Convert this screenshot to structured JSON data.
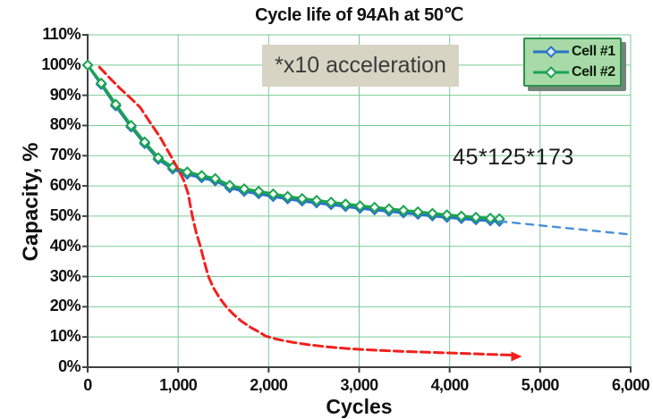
{
  "chart_data": {
    "type": "line",
    "title": "Cycle life of 94Ah at  50℃",
    "xlabel": "Cycles",
    "ylabel": "Capacity, %",
    "xlim": [
      0,
      6000
    ],
    "ylim": [
      0,
      110
    ],
    "grid": true,
    "legend_position": "top-right",
    "x_ticks": [
      {
        "value": 0,
        "label": "0"
      },
      {
        "value": 1000,
        "label": "1,000"
      },
      {
        "value": 2000,
        "label": "2,000"
      },
      {
        "value": 3000,
        "label": "3,000"
      },
      {
        "value": 4000,
        "label": "4,000"
      },
      {
        "value": 5000,
        "label": "5,000"
      },
      {
        "value": 6000,
        "label": "6,000"
      }
    ],
    "y_ticks": [
      {
        "value": 0,
        "label": "0%"
      },
      {
        "value": 10,
        "label": "10%"
      },
      {
        "value": 20,
        "label": "20%"
      },
      {
        "value": 30,
        "label": "30%"
      },
      {
        "value": 40,
        "label": "40%"
      },
      {
        "value": 50,
        "label": "50%"
      },
      {
        "value": 60,
        "label": "60%"
      },
      {
        "value": 70,
        "label": "70%"
      },
      {
        "value": 80,
        "label": "80%"
      },
      {
        "value": 90,
        "label": "90%"
      },
      {
        "value": 100,
        "label": "100%"
      },
      {
        "value": 110,
        "label": "110%"
      }
    ],
    "series": [
      {
        "name": "Cell #1",
        "color": "#2b74c8",
        "line": "solid",
        "marker": "diamond",
        "points": [
          [
            0,
            100
          ],
          [
            150,
            93.6
          ],
          [
            310,
            86.5
          ],
          [
            480,
            79.5
          ],
          [
            630,
            74
          ],
          [
            780,
            68.8
          ],
          [
            940,
            65.6
          ],
          [
            1100,
            63.9
          ],
          [
            1260,
            62.7
          ],
          [
            1410,
            61.7
          ],
          [
            1570,
            59.4
          ],
          [
            1730,
            58.2
          ],
          [
            1890,
            57.4
          ],
          [
            2050,
            56.5
          ],
          [
            2210,
            55.7
          ],
          [
            2370,
            55
          ],
          [
            2530,
            54.4
          ],
          [
            2690,
            53.8
          ],
          [
            2850,
            53.2
          ],
          [
            3010,
            52.6
          ],
          [
            3170,
            52.1
          ],
          [
            3330,
            51.6
          ],
          [
            3490,
            51.1
          ],
          [
            3650,
            50.6
          ],
          [
            3810,
            50.1
          ],
          [
            3970,
            49.6
          ],
          [
            4130,
            49.2
          ],
          [
            4290,
            48.8
          ],
          [
            4450,
            48.5
          ],
          [
            4550,
            48.3
          ]
        ]
      },
      {
        "name": "Cell #2",
        "color": "#1ba351",
        "line": "solid",
        "marker": "diamond",
        "points": [
          [
            0,
            100
          ],
          [
            150,
            94
          ],
          [
            310,
            87
          ],
          [
            480,
            80
          ],
          [
            630,
            74.5
          ],
          [
            780,
            69.3
          ],
          [
            940,
            66.2
          ],
          [
            1100,
            64.6
          ],
          [
            1260,
            63.4
          ],
          [
            1410,
            62.4
          ],
          [
            1570,
            60.2
          ],
          [
            1730,
            59
          ],
          [
            1890,
            58.2
          ],
          [
            2050,
            57.3
          ],
          [
            2210,
            56.5
          ],
          [
            2370,
            55.8
          ],
          [
            2530,
            55.2
          ],
          [
            2690,
            54.6
          ],
          [
            2850,
            54
          ],
          [
            3010,
            53.4
          ],
          [
            3170,
            52.9
          ],
          [
            3330,
            52.4
          ],
          [
            3490,
            51.9
          ],
          [
            3650,
            51.4
          ],
          [
            3810,
            50.9
          ],
          [
            3970,
            50.4
          ],
          [
            4130,
            50
          ],
          [
            4290,
            49.6
          ],
          [
            4450,
            49.3
          ],
          [
            4550,
            49.1
          ]
        ]
      },
      {
        "name": "Cell #1 extrapolation",
        "color": "#4a90d9",
        "line": "dashed",
        "marker": "none",
        "points": [
          [
            4550,
            48.3
          ],
          [
            6000,
            43.9
          ]
        ]
      },
      {
        "name": "x10 accelerated reference",
        "color": "#f2201e",
        "line": "dashed",
        "marker": "none",
        "arrow_end": true,
        "points": [
          [
            130,
            99.3
          ],
          [
            250,
            95.5
          ],
          [
            360,
            92.2
          ],
          [
            470,
            89.2
          ],
          [
            580,
            86
          ],
          [
            690,
            81
          ],
          [
            800,
            76.2
          ],
          [
            917,
            70
          ],
          [
            1000,
            65.5
          ],
          [
            1060,
            62
          ],
          [
            1110,
            57.5
          ],
          [
            1157,
            50
          ],
          [
            1200,
            44.5
          ],
          [
            1245,
            40
          ],
          [
            1290,
            34.8
          ],
          [
            1334,
            30
          ],
          [
            1390,
            26.3
          ],
          [
            1460,
            22.8
          ],
          [
            1532,
            20
          ],
          [
            1610,
            17.5
          ],
          [
            1700,
            15.2
          ],
          [
            1800,
            13.2
          ],
          [
            1880,
            11.9
          ],
          [
            1967,
            10.3
          ],
          [
            2100,
            9.2
          ],
          [
            2250,
            8.3
          ],
          [
            2450,
            7.4
          ],
          [
            2650,
            6.7
          ],
          [
            2900,
            6.1
          ],
          [
            3200,
            5.6
          ],
          [
            3500,
            5.2
          ],
          [
            3800,
            4.9
          ],
          [
            4100,
            4.6
          ],
          [
            4400,
            4.3
          ],
          [
            4700,
            4
          ]
        ]
      }
    ],
    "legend": {
      "entries": [
        {
          "label": "Cell #1",
          "color": "#2b74c8"
        },
        {
          "label": "Cell #2",
          "color": "#1ba351"
        }
      ]
    },
    "annotations": [
      {
        "text": "*x10 acceleration",
        "style": "box"
      },
      {
        "text": "45*125*173",
        "style": "plain"
      }
    ]
  },
  "colors": {
    "grid": "#79cb94",
    "axis": "#404040",
    "legend_fill": "#a7daa7",
    "legend_border": "#2c9149",
    "annotation_box": "#d8d4c4"
  }
}
